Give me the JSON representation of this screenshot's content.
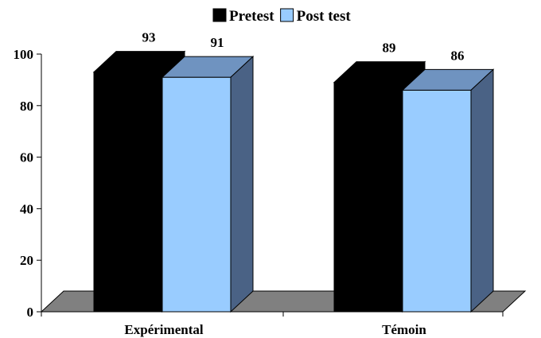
{
  "chart_data": {
    "type": "bar",
    "categories": [
      "Expérimental",
      "Témoin"
    ],
    "series": [
      {
        "name": "Pretest",
        "values": [
          93,
          89
        ],
        "color": "#000000",
        "side_color": "#000000",
        "top_color": "#000000"
      },
      {
        "name": "Post test",
        "values": [
          91,
          86
        ],
        "color": "#99CCFF",
        "side_color": "#4A6285",
        "top_color": "#6F93C0"
      }
    ],
    "yticks": [
      0,
      20,
      40,
      60,
      80,
      100
    ],
    "ylim": [
      0,
      100
    ],
    "legend_position": "top",
    "floor_color": "#808080",
    "grid": false,
    "title": "",
    "xlabel": "",
    "ylabel": ""
  }
}
